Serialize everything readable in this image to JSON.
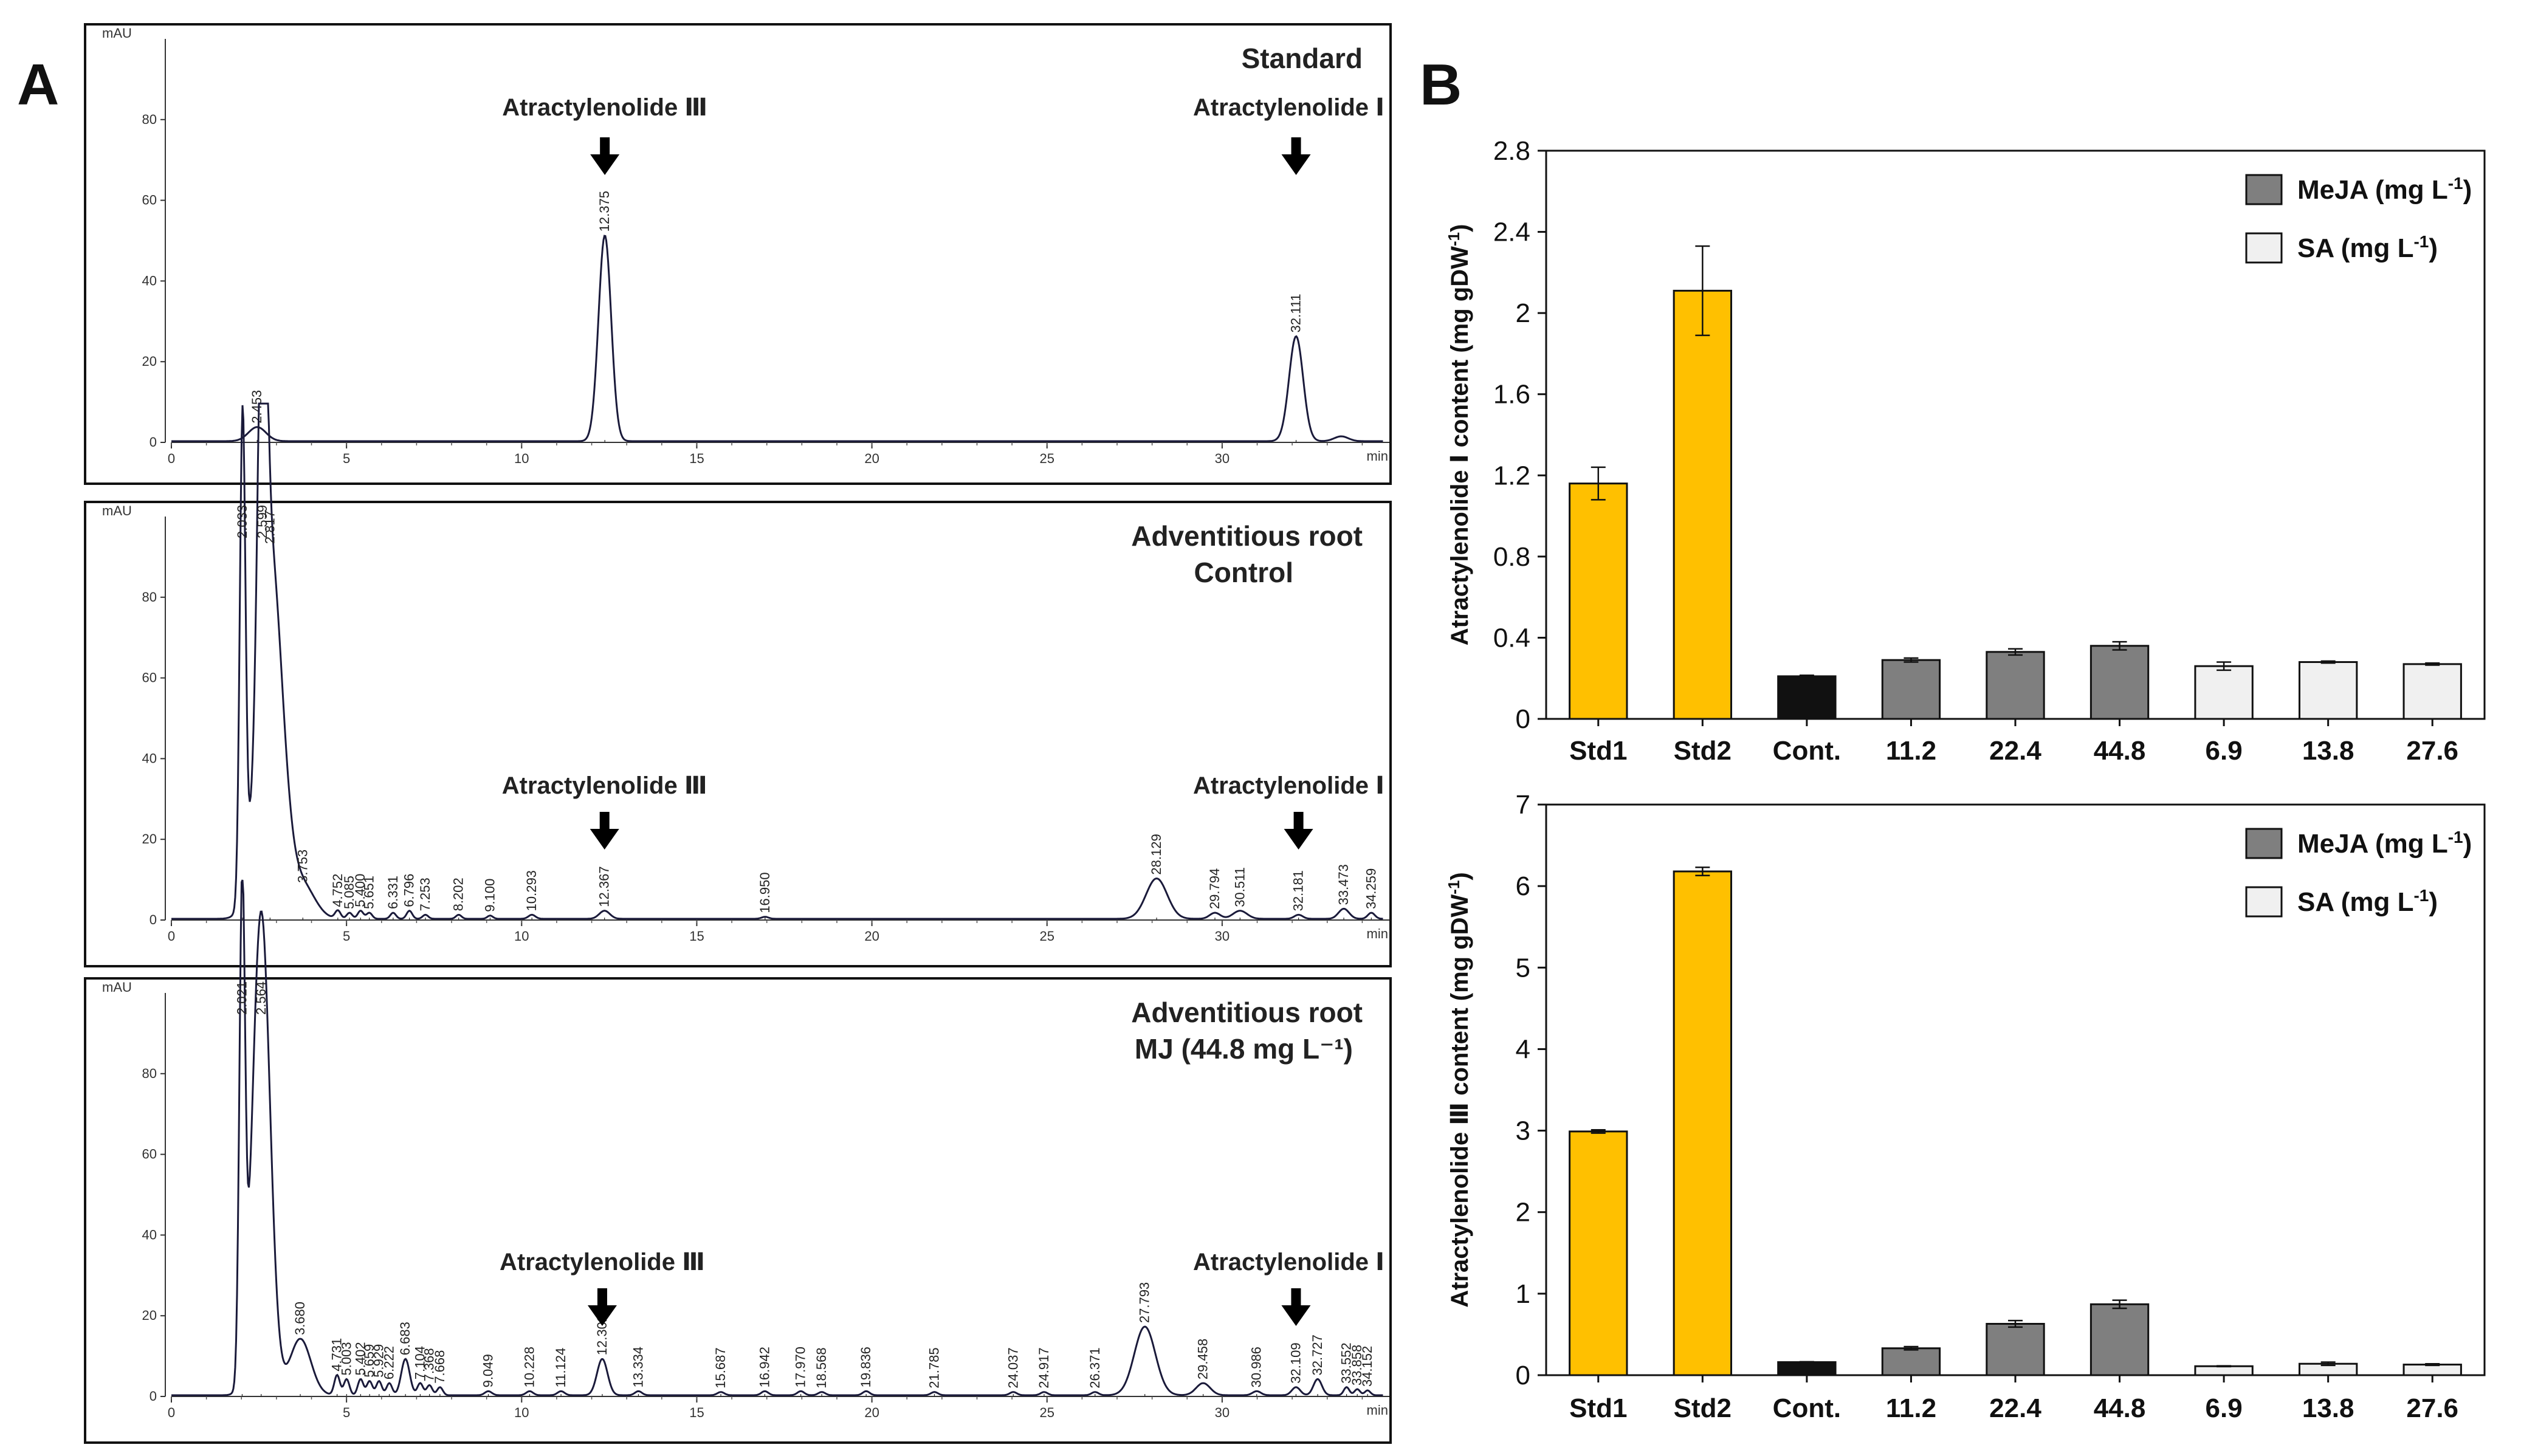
{
  "panel_letters": {
    "a": "A",
    "b": "B"
  },
  "colors": {
    "std": "#ffc000",
    "control": "#111111",
    "meja": "#7f7f7f",
    "sa": "#f0f0f0",
    "trace": "#1a1a3a"
  },
  "chart_data": [
    {
      "id": "chrom-standard",
      "type": "line",
      "title": "Standard",
      "title_line2": "",
      "y_unit": "mAU",
      "x_unit": "min",
      "xlim": [
        0,
        34.6
      ],
      "ylim": [
        0,
        100
      ],
      "x_ticks": [
        "0",
        "5",
        "10",
        "15",
        "20",
        "25",
        "30"
      ],
      "y_ticks": [
        "0",
        "20",
        "40",
        "60",
        "80"
      ],
      "peaks": [
        {
          "rt": 2.45,
          "height": 3.5,
          "width": 0.25,
          "label": "2.453"
        },
        {
          "rt": 12.375,
          "height": 51,
          "width": 0.18,
          "label": "12.375"
        },
        {
          "rt": 32.111,
          "height": 26,
          "width": 0.2,
          "label": "32.111"
        },
        {
          "rt": 33.4,
          "height": 1.2,
          "width": 0.2,
          "label": ""
        }
      ],
      "annotations": [
        {
          "text": "Atractylenolide Ⅲ",
          "rt": 12.375
        },
        {
          "text": "Atractylenolide Ⅰ",
          "rt": 32.111
        }
      ]
    },
    {
      "id": "chrom-control",
      "type": "line",
      "title": "Adventitious root",
      "title_line2": "Control",
      "y_unit": "mAU",
      "x_unit": "min",
      "xlim": [
        0,
        34.6
      ],
      "ylim": [
        0,
        100
      ],
      "x_ticks": [
        "0",
        "5",
        "10",
        "15",
        "20",
        "25",
        "30"
      ],
      "y_ticks": [
        "0",
        "20",
        "40",
        "60",
        "80"
      ],
      "peaks": [
        {
          "rt": 2.033,
          "height": 120,
          "width": 0.08,
          "label": "2.033"
        },
        {
          "rt": 2.599,
          "height": 100,
          "width": 0.12,
          "label": "2.599"
        },
        {
          "rt": 2.817,
          "height": 92,
          "width": 0.35,
          "label": "2.817"
        },
        {
          "rt": 3.753,
          "height": 8,
          "width": 0.35,
          "label": "3.753"
        },
        {
          "rt": 4.752,
          "height": 2,
          "width": 0.08,
          "label": "4.752"
        },
        {
          "rt": 5.085,
          "height": 1.5,
          "width": 0.08,
          "label": "5.085"
        },
        {
          "rt": 5.4,
          "height": 2,
          "width": 0.08,
          "label": "5.400"
        },
        {
          "rt": 5.651,
          "height": 1.5,
          "width": 0.08,
          "label": "5.651"
        },
        {
          "rt": 6.331,
          "height": 1.5,
          "width": 0.08,
          "label": "6.331"
        },
        {
          "rt": 6.796,
          "height": 2,
          "width": 0.08,
          "label": "6.796"
        },
        {
          "rt": 7.253,
          "height": 1,
          "width": 0.08,
          "label": "7.253"
        },
        {
          "rt": 8.202,
          "height": 1,
          "width": 0.08,
          "label": "8.202"
        },
        {
          "rt": 9.1,
          "height": 0.8,
          "width": 0.08,
          "label": "9.100"
        },
        {
          "rt": 10.293,
          "height": 1,
          "width": 0.1,
          "label": "10.293"
        },
        {
          "rt": 12.367,
          "height": 2,
          "width": 0.15,
          "label": "12.367"
        },
        {
          "rt": 16.95,
          "height": 0.5,
          "width": 0.1,
          "label": "16.950"
        },
        {
          "rt": 28.129,
          "height": 10,
          "width": 0.3,
          "label": "28.129"
        },
        {
          "rt": 29.794,
          "height": 1.5,
          "width": 0.15,
          "label": "29.794"
        },
        {
          "rt": 30.511,
          "height": 2,
          "width": 0.2,
          "label": "30.511"
        },
        {
          "rt": 32.181,
          "height": 1,
          "width": 0.12,
          "label": "32.181"
        },
        {
          "rt": 33.473,
          "height": 2.5,
          "width": 0.15,
          "label": "33.473"
        },
        {
          "rt": 34.259,
          "height": 1.5,
          "width": 0.1,
          "label": "34.259"
        }
      ],
      "annotations": [
        {
          "text": "Atractylenolide Ⅲ",
          "rt": 12.367
        },
        {
          "text": "Atractylenolide Ⅰ",
          "rt": 32.181
        }
      ]
    },
    {
      "id": "chrom-mj",
      "type": "line",
      "title": "Adventitious root",
      "title_line2": "MJ (44.8 mg L⁻¹)",
      "y_unit": "mAU",
      "x_unit": "min",
      "xlim": [
        0,
        34.6
      ],
      "ylim": [
        0,
        100
      ],
      "x_ticks": [
        "0",
        "5",
        "10",
        "15",
        "20",
        "25",
        "30"
      ],
      "y_ticks": [
        "0",
        "20",
        "40",
        "60",
        "80"
      ],
      "peaks": [
        {
          "rt": 2.021,
          "height": 120,
          "width": 0.08,
          "label": "2.021"
        },
        {
          "rt": 2.564,
          "height": 120,
          "width": 0.25,
          "label": "2.564"
        },
        {
          "rt": 3.68,
          "height": 14,
          "width": 0.3,
          "label": "3.680"
        },
        {
          "rt": 4.731,
          "height": 5,
          "width": 0.08,
          "label": "4.731"
        },
        {
          "rt": 5.003,
          "height": 4,
          "width": 0.08,
          "label": "5.003"
        },
        {
          "rt": 5.402,
          "height": 4,
          "width": 0.08,
          "label": "5.402"
        },
        {
          "rt": 5.659,
          "height": 3.5,
          "width": 0.08,
          "label": "5.659"
        },
        {
          "rt": 5.929,
          "height": 3.5,
          "width": 0.08,
          "label": "5.929"
        },
        {
          "rt": 6.222,
          "height": 3,
          "width": 0.08,
          "label": "6.222"
        },
        {
          "rt": 6.683,
          "height": 9,
          "width": 0.12,
          "label": "6.683"
        },
        {
          "rt": 7.104,
          "height": 3,
          "width": 0.08,
          "label": "7.104"
        },
        {
          "rt": 7.368,
          "height": 2.5,
          "width": 0.08,
          "label": "7.368"
        },
        {
          "rt": 7.668,
          "height": 2,
          "width": 0.08,
          "label": "7.668"
        },
        {
          "rt": 9.049,
          "height": 1,
          "width": 0.1,
          "label": "9.049"
        },
        {
          "rt": 10.228,
          "height": 1,
          "width": 0.1,
          "label": "10.228"
        },
        {
          "rt": 11.124,
          "height": 1,
          "width": 0.1,
          "label": "11.124"
        },
        {
          "rt": 12.302,
          "height": 9,
          "width": 0.15,
          "label": "12.302"
        },
        {
          "rt": 13.334,
          "height": 1,
          "width": 0.1,
          "label": "13.334"
        },
        {
          "rt": 15.687,
          "height": 0.8,
          "width": 0.1,
          "label": "15.687"
        },
        {
          "rt": 16.942,
          "height": 1,
          "width": 0.1,
          "label": "16.942"
        },
        {
          "rt": 17.97,
          "height": 1,
          "width": 0.1,
          "label": "17.970"
        },
        {
          "rt": 18.568,
          "height": 0.8,
          "width": 0.1,
          "label": "18.568"
        },
        {
          "rt": 19.836,
          "height": 1,
          "width": 0.1,
          "label": "19.836"
        },
        {
          "rt": 21.785,
          "height": 0.8,
          "width": 0.1,
          "label": "21.785"
        },
        {
          "rt": 24.037,
          "height": 0.8,
          "width": 0.1,
          "label": "24.037"
        },
        {
          "rt": 24.917,
          "height": 0.8,
          "width": 0.1,
          "label": "24.917"
        },
        {
          "rt": 26.371,
          "height": 0.8,
          "width": 0.1,
          "label": "26.371"
        },
        {
          "rt": 27.793,
          "height": 17,
          "width": 0.3,
          "label": "27.793"
        },
        {
          "rt": 29.458,
          "height": 3,
          "width": 0.2,
          "label": "29.458"
        },
        {
          "rt": 30.986,
          "height": 1,
          "width": 0.12,
          "label": "30.986"
        },
        {
          "rt": 32.109,
          "height": 2,
          "width": 0.12,
          "label": "32.109"
        },
        {
          "rt": 32.727,
          "height": 4,
          "width": 0.12,
          "label": "32.727"
        },
        {
          "rt": 33.552,
          "height": 2,
          "width": 0.08,
          "label": "33.552"
        },
        {
          "rt": 33.858,
          "height": 1.5,
          "width": 0.08,
          "label": "33.858"
        },
        {
          "rt": 34.152,
          "height": 1.2,
          "width": 0.08,
          "label": "34.152"
        }
      ],
      "annotations": [
        {
          "text": "Atractylenolide Ⅲ",
          "rt": 12.302
        },
        {
          "text": "Atractylenolide Ⅰ",
          "rt": 32.109
        }
      ]
    },
    {
      "id": "bar-atr-1",
      "type": "bar",
      "ylabel_prefix": "Atractylenolide Ⅰ content (mg gDW",
      "ylabel_sup": "-1",
      "ylabel_suffix": ")",
      "ylim": [
        0,
        2.8
      ],
      "y_ticks": [
        "0",
        "0.4",
        "0.8",
        "1.2",
        "1.6",
        "2",
        "2.4",
        "2.8"
      ],
      "categories": [
        "Std1",
        "Std2",
        "Cont.",
        "11.2",
        "22.4",
        "44.8",
        "6.9",
        "13.8",
        "27.6"
      ],
      "values": [
        1.16,
        2.11,
        0.21,
        0.29,
        0.33,
        0.36,
        0.26,
        0.28,
        0.27
      ],
      "errors": [
        0.08,
        0.22,
        0.005,
        0.01,
        0.015,
        0.02,
        0.02,
        0.005,
        0.005
      ],
      "groups": [
        "std",
        "std",
        "control",
        "meja",
        "meja",
        "meja",
        "sa",
        "sa",
        "sa"
      ],
      "legend": [
        {
          "key": "meja",
          "label": "MeJA (mg L",
          "sup": "-1",
          "close": ")"
        },
        {
          "key": "sa",
          "label": "SA (mg L",
          "sup": "-1",
          "close": ")"
        }
      ]
    },
    {
      "id": "bar-atr-3",
      "type": "bar",
      "ylabel_prefix": "Atractylenolide Ⅲ content (mg gDW",
      "ylabel_sup": "-1",
      "ylabel_suffix": ")",
      "ylim": [
        0,
        7
      ],
      "y_ticks": [
        "0",
        "1",
        "2",
        "3",
        "4",
        "5",
        "6",
        "7"
      ],
      "categories": [
        "Std1",
        "Std2",
        "Cont.",
        "11.2",
        "22.4",
        "44.8",
        "6.9",
        "13.8",
        "27.6"
      ],
      "values": [
        2.99,
        6.18,
        0.16,
        0.33,
        0.63,
        0.87,
        0.11,
        0.14,
        0.13
      ],
      "errors": [
        0.02,
        0.05,
        0.005,
        0.02,
        0.04,
        0.05,
        0.005,
        0.02,
        0.01
      ],
      "groups": [
        "std",
        "std",
        "control",
        "meja",
        "meja",
        "meja",
        "sa",
        "sa",
        "sa"
      ],
      "legend": [
        {
          "key": "meja",
          "label": "MeJA (mg L",
          "sup": "-1",
          "close": ")"
        },
        {
          "key": "sa",
          "label": "SA (mg L",
          "sup": "-1",
          "close": ")"
        }
      ]
    }
  ]
}
